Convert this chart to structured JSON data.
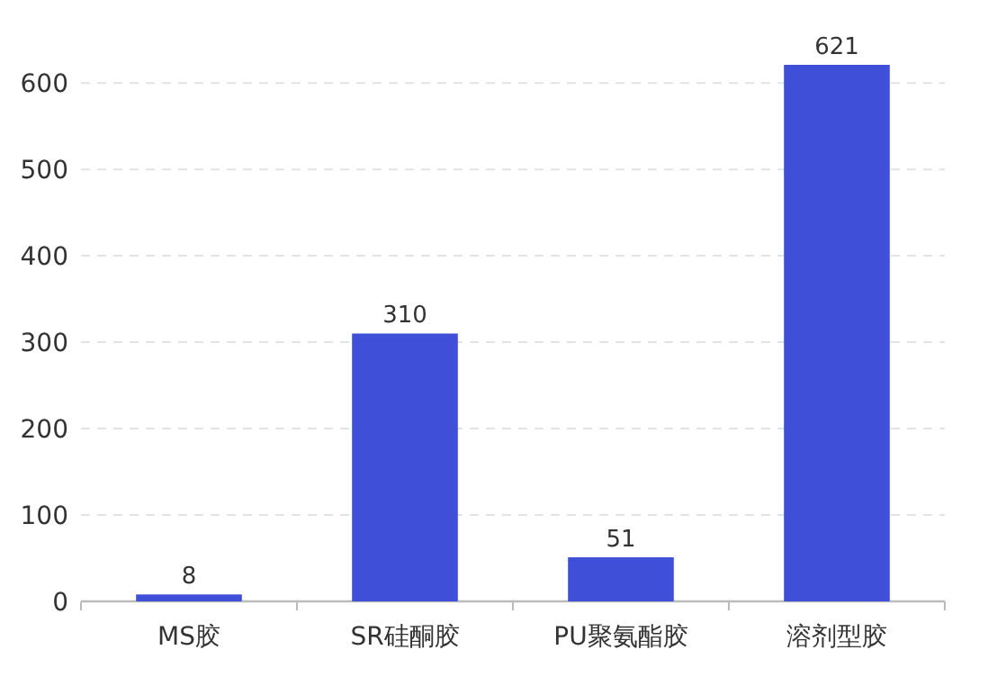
{
  "chart_data": {
    "type": "bar",
    "categories": [
      "MS胶",
      "SR硅酮胶",
      "PU聚氨酯胶",
      "溶剂型胶"
    ],
    "values": [
      8,
      310,
      51,
      621
    ],
    "color": "#3f4fd8",
    "ylim": [
      0,
      621
    ],
    "yticks": [
      0,
      100,
      200,
      300,
      400,
      500,
      600
    ],
    "grid": "y",
    "data_labels": true
  }
}
